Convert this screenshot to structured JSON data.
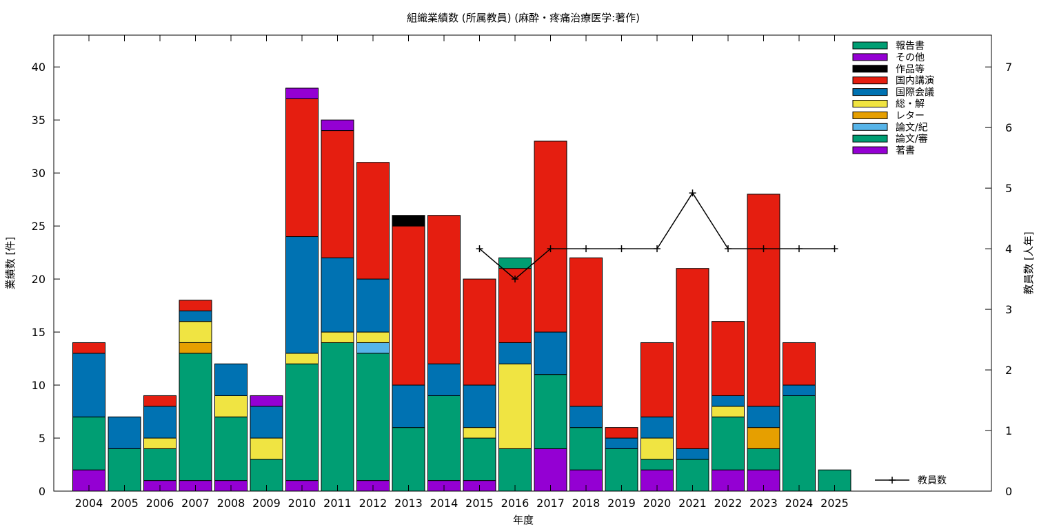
{
  "chart_data": {
    "type": "bar",
    "stacked": true,
    "title": "組織業績数 (所属教員) (麻酔・疼痛治療医学:著作)",
    "xlabel": "年度",
    "ylabel": "業績数 [件]",
    "y2label": "教員数 [人年]",
    "ylim": [
      0,
      43
    ],
    "y2lim": [
      0,
      7.525
    ],
    "yticks": [
      0,
      5,
      10,
      15,
      20,
      25,
      30,
      35,
      40
    ],
    "y2ticks": [
      0,
      1,
      2,
      3,
      4,
      5,
      6,
      7
    ],
    "grid": false,
    "legend_position": "top-right",
    "categories": [
      "2004",
      "2005",
      "2006",
      "2007",
      "2008",
      "2009",
      "2010",
      "2011",
      "2012",
      "2013",
      "2014",
      "2015",
      "2016",
      "2017",
      "2018",
      "2019",
      "2020",
      "2021",
      "2022",
      "2023",
      "2024",
      "2025"
    ],
    "series": [
      {
        "name": "著書",
        "color": "#9400d3",
        "values": [
          2,
          0,
          1,
          1,
          1,
          0,
          1,
          0,
          1,
          0,
          1,
          1,
          0,
          4,
          2,
          0,
          2,
          0,
          2,
          2,
          0,
          0
        ]
      },
      {
        "name": "論文/審",
        "color": "#009e73",
        "values": [
          5,
          4,
          3,
          12,
          6,
          3,
          11,
          14,
          12,
          6,
          8,
          4,
          4,
          7,
          4,
          4,
          1,
          3,
          5,
          2,
          9,
          2
        ]
      },
      {
        "name": "論文/紀",
        "color": "#56b4e9",
        "values": [
          0,
          0,
          0,
          0,
          0,
          0,
          0,
          0,
          1,
          0,
          0,
          0,
          0,
          0,
          0,
          0,
          0,
          0,
          0,
          0,
          0,
          0
        ]
      },
      {
        "name": "レター",
        "color": "#e69f00",
        "values": [
          0,
          0,
          0,
          1,
          0,
          0,
          0,
          0,
          0,
          0,
          0,
          0,
          0,
          0,
          0,
          0,
          0,
          0,
          0,
          2,
          0,
          0
        ]
      },
      {
        "name": "総・解",
        "color": "#f0e442",
        "values": [
          0,
          0,
          1,
          2,
          2,
          2,
          1,
          1,
          1,
          0,
          0,
          1,
          8,
          0,
          0,
          0,
          2,
          0,
          1,
          0,
          0,
          0
        ]
      },
      {
        "name": "国際会議",
        "color": "#0072b2",
        "values": [
          6,
          3,
          3,
          1,
          3,
          3,
          11,
          7,
          5,
          4,
          3,
          4,
          2,
          4,
          2,
          1,
          2,
          1,
          1,
          2,
          1,
          0
        ]
      },
      {
        "name": "国内講演",
        "color": "#e51e10",
        "values": [
          1,
          0,
          1,
          1,
          0,
          0,
          13,
          12,
          11,
          15,
          14,
          10,
          7,
          18,
          14,
          1,
          7,
          17,
          7,
          20,
          4,
          0
        ]
      },
      {
        "name": "作品等",
        "color": "#000000",
        "values": [
          0,
          0,
          0,
          0,
          0,
          0,
          0,
          0,
          0,
          1,
          0,
          0,
          0,
          0,
          0,
          0,
          0,
          0,
          0,
          0,
          0,
          0
        ]
      },
      {
        "name": "その他",
        "color": "#9400d3",
        "values": [
          0,
          0,
          0,
          0,
          0,
          1,
          1,
          1,
          0,
          0,
          0,
          0,
          0,
          0,
          0,
          0,
          0,
          0,
          0,
          0,
          0,
          0
        ]
      },
      {
        "name": "報告書",
        "color": "#009e73",
        "values": [
          0,
          0,
          0,
          0,
          0,
          0,
          0,
          0,
          0,
          0,
          0,
          0,
          1,
          0,
          0,
          0,
          0,
          0,
          0,
          0,
          0,
          0
        ]
      }
    ],
    "line_series": {
      "name": "教員数",
      "color": "#000000",
      "axis": "right",
      "x": [
        "2015",
        "2016",
        "2017",
        "2018",
        "2019",
        "2020",
        "2021",
        "2022",
        "2023",
        "2024",
        "2025"
      ],
      "values": [
        4,
        3.5,
        4,
        4,
        4,
        4,
        4.92,
        4,
        4,
        4,
        4
      ]
    }
  }
}
